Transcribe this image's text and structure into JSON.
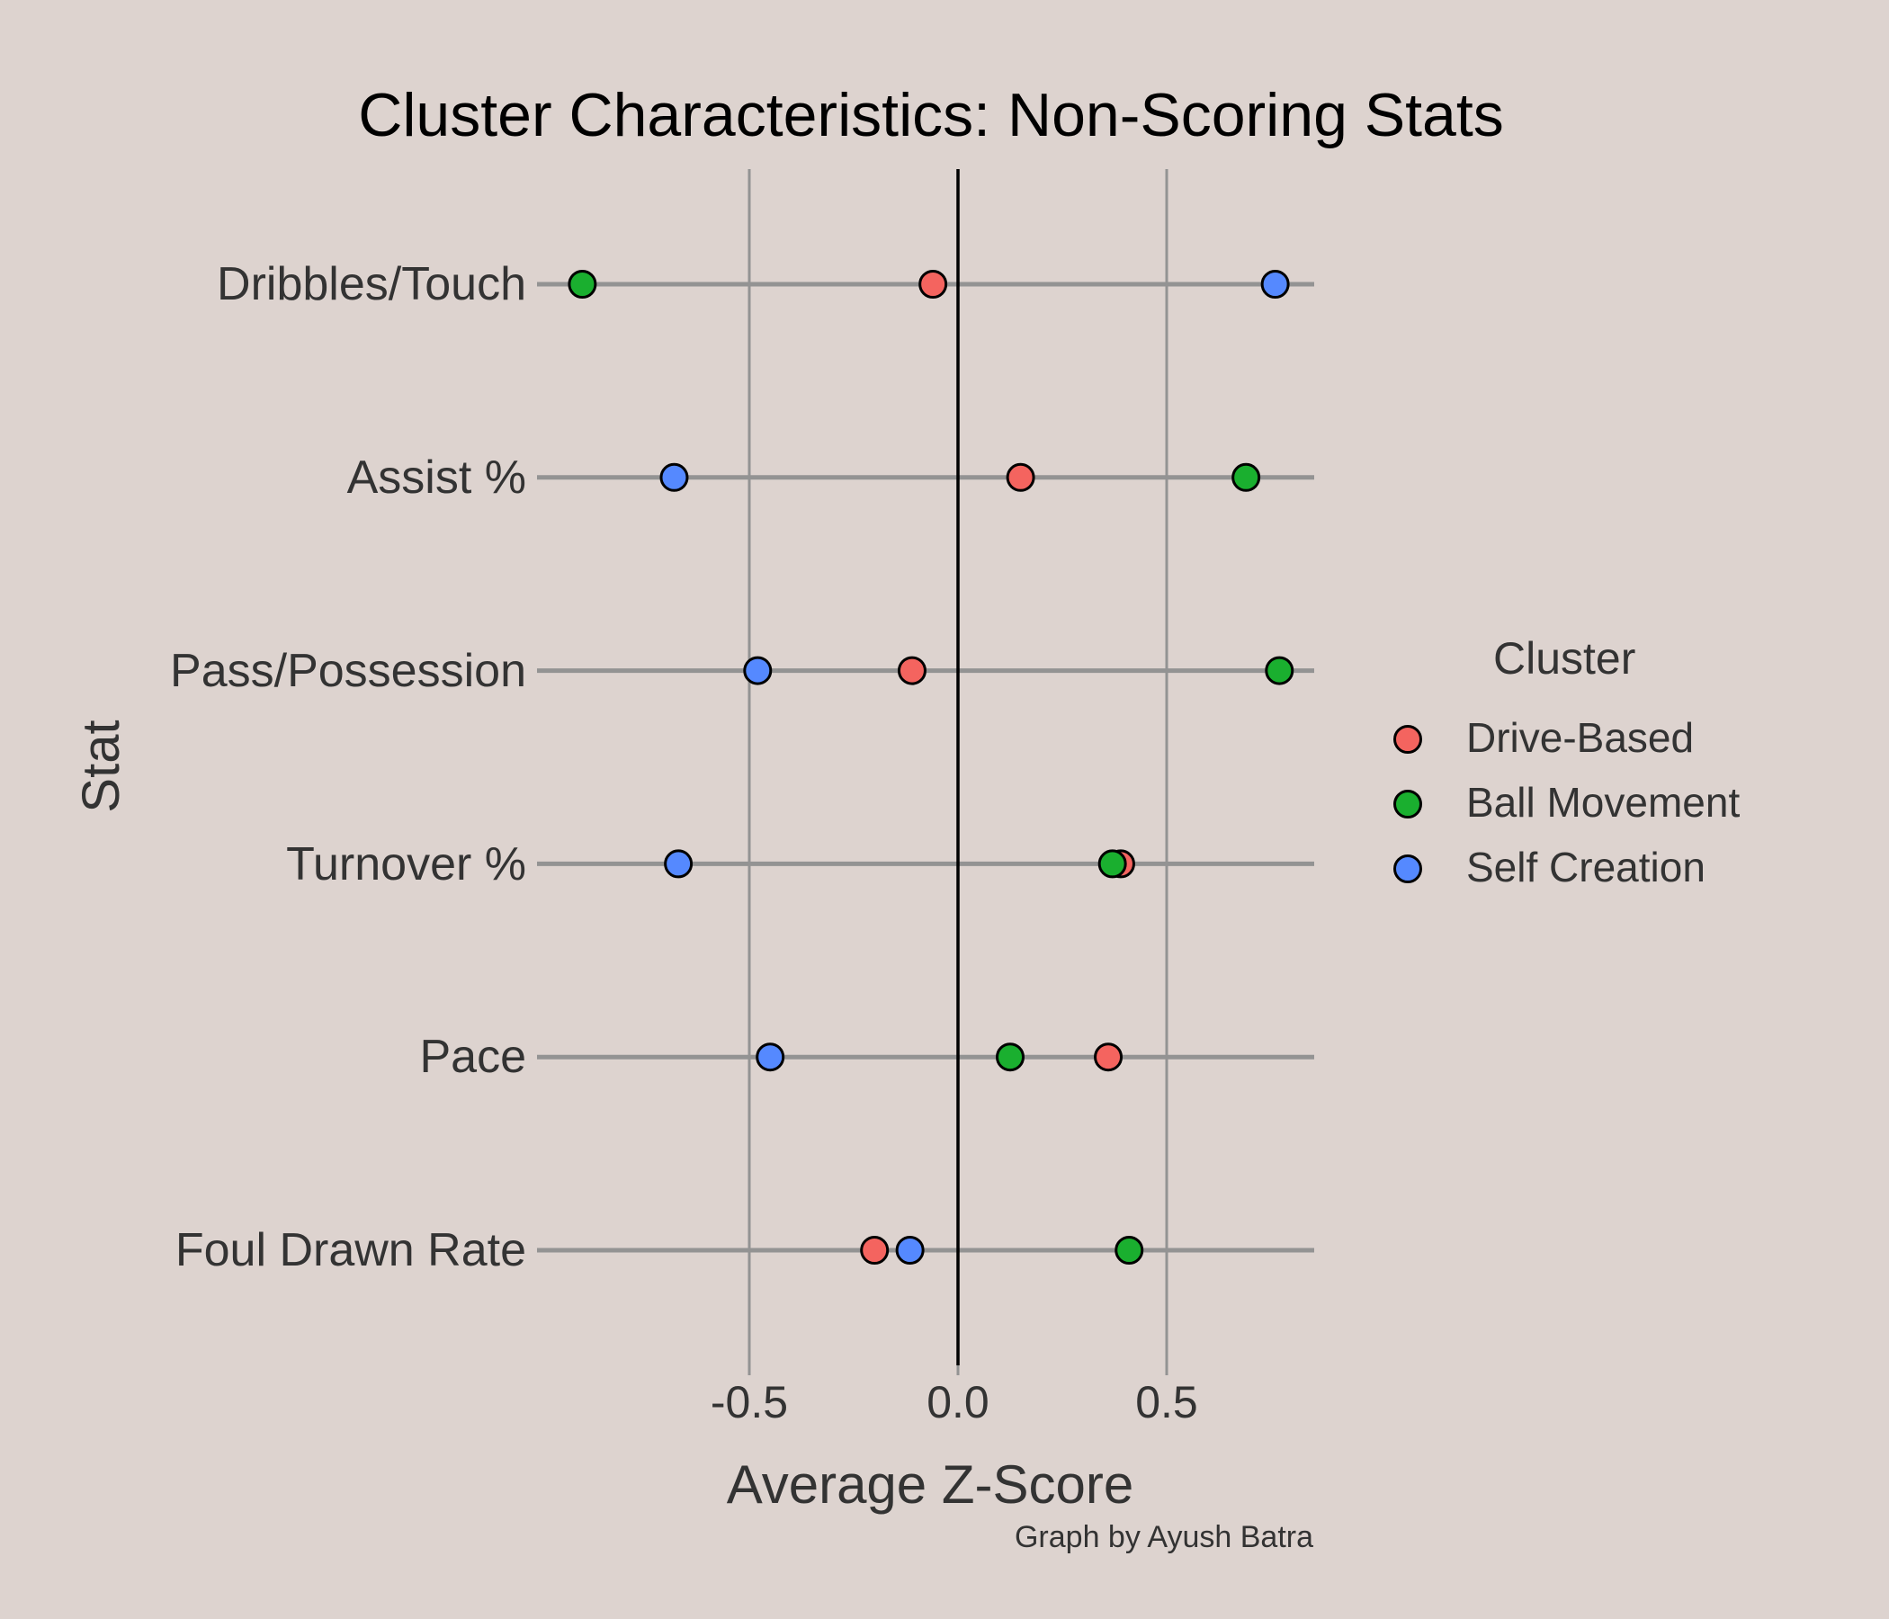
{
  "chart_data": {
    "type": "scatter",
    "subtype": "dot-plot",
    "title": "Cluster Characteristics: Non-Scoring Stats",
    "xlabel": "Average Z-Score",
    "ylabel": "Stat",
    "caption": "Graph by Ayush Batra",
    "xlim": [
      -1.01,
      0.85
    ],
    "x_ticks": [
      -0.5,
      0.0,
      0.5
    ],
    "x_tick_labels": [
      "-0.5",
      "0.0",
      "0.5"
    ],
    "reference_line_x": 0.0,
    "grid": true,
    "legend_position": "right",
    "legend_title": "Cluster",
    "categories": [
      "Dribbles/Touch",
      "Assist %",
      "Pass/Possession",
      "Turnover %",
      "Pace",
      "Foul Drawn Rate"
    ],
    "series": [
      {
        "name": "Drive-Based",
        "color": "#F4645F",
        "values": [
          -0.06,
          0.15,
          -0.11,
          0.39,
          0.36,
          -0.2
        ]
      },
      {
        "name": "Ball Movement",
        "color": "#1AAF2F",
        "values": [
          -0.9,
          0.69,
          0.77,
          0.37,
          0.125,
          0.41
        ]
      },
      {
        "name": "Self Creation",
        "color": "#5589FF",
        "values": [
          0.76,
          -0.68,
          -0.48,
          -0.67,
          -0.45,
          -0.115
        ]
      }
    ]
  },
  "colors": {
    "background": "#DDD3CF",
    "grid": "#939393",
    "zero_line": "#000000",
    "text": "#333333"
  }
}
